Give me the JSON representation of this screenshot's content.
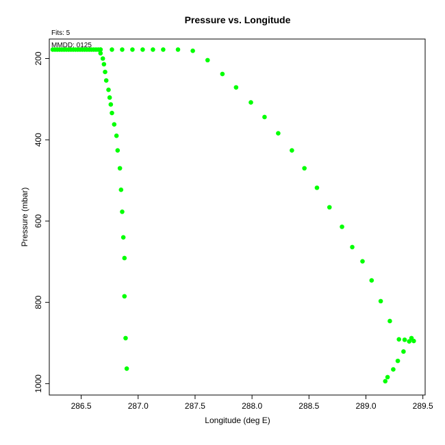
{
  "title": "Pressure vs. Longitude",
  "fits_label": "Fits: 5",
  "mmdd_label": "MMDD: 0125",
  "colors": {
    "point": "#00ff00",
    "axis": "#000000",
    "background": "#ffffff"
  },
  "chart_data": {
    "type": "scatter",
    "title": "Pressure vs. Longitude",
    "xlabel": "Longitude (deg E)",
    "ylabel": "Pressure (mbar)",
    "xlim": [
      286.22,
      289.52
    ],
    "ylim": [
      1028,
      152
    ],
    "y_reversed": true,
    "grid": false,
    "legend": "none",
    "x_ticks": [
      286.5,
      287.0,
      287.5,
      288.0,
      288.5,
      289.0,
      289.5
    ],
    "x_tick_labels": [
      "286.5",
      "287.0",
      "287.5",
      "288.0",
      "288.5",
      "289.0",
      "289.5"
    ],
    "y_ticks": [
      200,
      400,
      600,
      800,
      1000
    ],
    "y_tick_labels": [
      "200",
      "400",
      "600",
      "800",
      "1000"
    ],
    "series": [
      {
        "points": [
          [
            286.25,
            178
          ],
          [
            286.27,
            178
          ],
          [
            286.29,
            178
          ],
          [
            286.31,
            178
          ],
          [
            286.33,
            178
          ],
          [
            286.35,
            178
          ],
          [
            286.37,
            178
          ],
          [
            286.39,
            178
          ],
          [
            286.41,
            178
          ],
          [
            286.43,
            178
          ],
          [
            286.45,
            178
          ],
          [
            286.47,
            178
          ],
          [
            286.49,
            178
          ],
          [
            286.51,
            178
          ],
          [
            286.53,
            178
          ],
          [
            286.55,
            178
          ],
          [
            286.57,
            178
          ],
          [
            286.59,
            178
          ],
          [
            286.61,
            178
          ],
          [
            286.63,
            178
          ],
          [
            286.65,
            178
          ],
          [
            286.67,
            178
          ],
          [
            286.67,
            187
          ],
          [
            286.69,
            200
          ],
          [
            286.7,
            214
          ],
          [
            286.71,
            233
          ],
          [
            286.72,
            254
          ],
          [
            286.74,
            277
          ],
          [
            286.75,
            296
          ],
          [
            286.76,
            313
          ],
          [
            286.77,
            334
          ],
          [
            286.79,
            362
          ],
          [
            286.81,
            390
          ],
          [
            286.82,
            426
          ],
          [
            286.84,
            470
          ],
          [
            286.85,
            523
          ],
          [
            286.86,
            577
          ],
          [
            286.87,
            640
          ],
          [
            286.88,
            691
          ],
          [
            286.88,
            785
          ],
          [
            286.89,
            888
          ],
          [
            286.9,
            963
          ]
        ]
      },
      {
        "points": [
          [
            286.67,
            178
          ],
          [
            286.77,
            178
          ],
          [
            286.86,
            178
          ],
          [
            286.95,
            178
          ],
          [
            287.04,
            178
          ],
          [
            287.13,
            178
          ],
          [
            287.22,
            178
          ],
          [
            287.35,
            178
          ],
          [
            287.48,
            181
          ],
          [
            287.61,
            204
          ],
          [
            287.74,
            238
          ],
          [
            287.86,
            271
          ],
          [
            287.99,
            308
          ],
          [
            288.11,
            344
          ],
          [
            288.23,
            384
          ],
          [
            288.35,
            426
          ],
          [
            288.46,
            470
          ],
          [
            288.57,
            518
          ],
          [
            288.68,
            566
          ],
          [
            288.79,
            614
          ],
          [
            288.88,
            664
          ],
          [
            288.97,
            699
          ],
          [
            289.05,
            746
          ],
          [
            289.13,
            797
          ],
          [
            289.21,
            846
          ],
          [
            289.29,
            891
          ],
          [
            289.34,
            892
          ],
          [
            289.38,
            896
          ],
          [
            289.4,
            888
          ],
          [
            289.42,
            895
          ],
          [
            289.33,
            921
          ],
          [
            289.28,
            944
          ],
          [
            289.24,
            965
          ],
          [
            289.19,
            984
          ],
          [
            289.17,
            994
          ]
        ]
      }
    ]
  }
}
